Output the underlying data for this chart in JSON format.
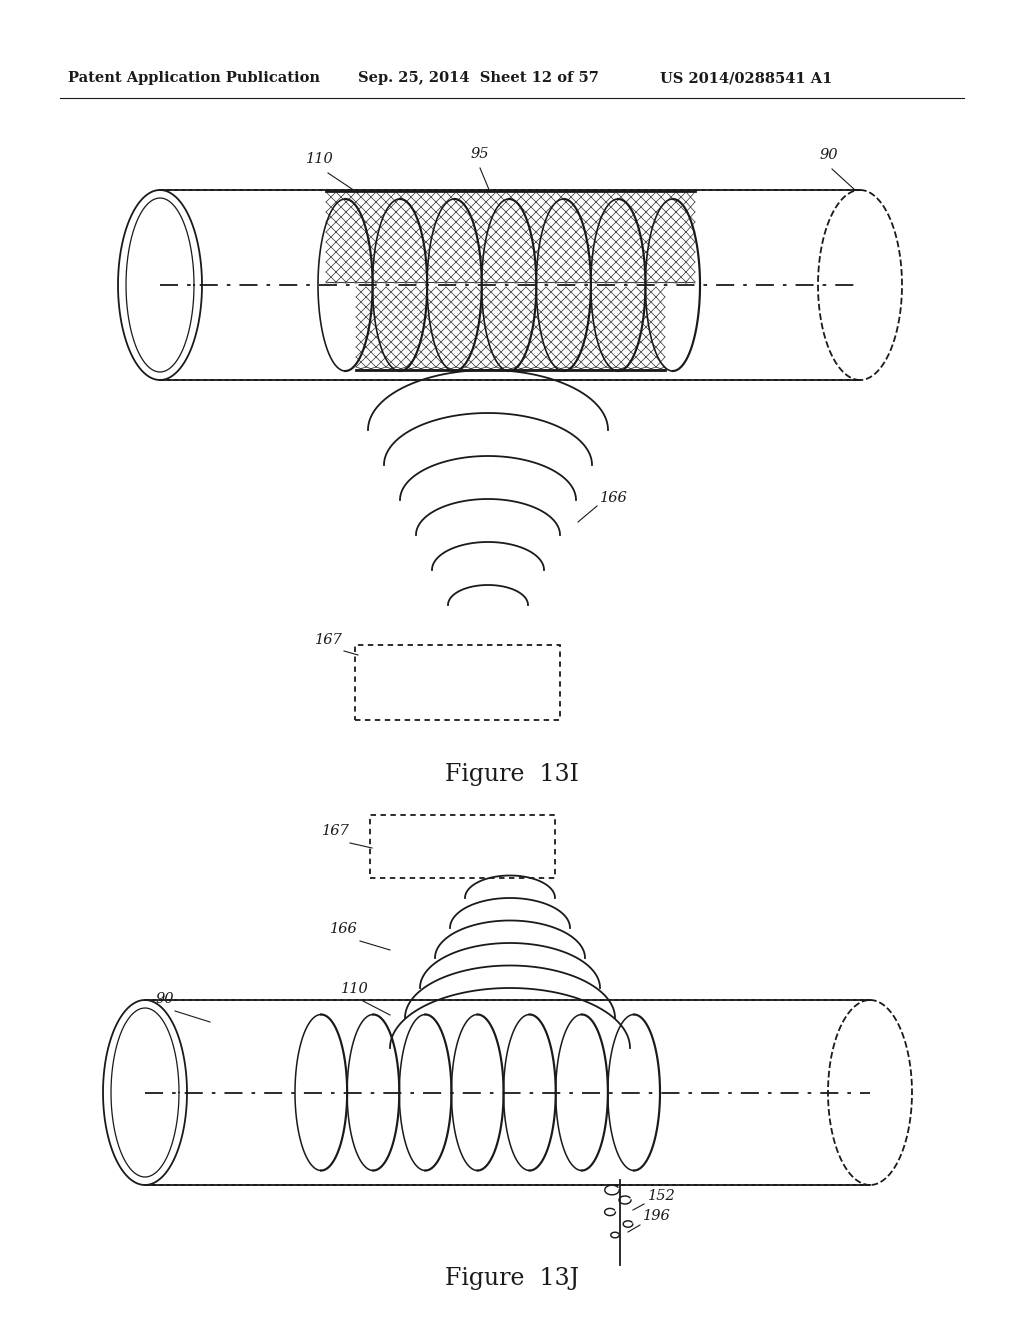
{
  "header_left": "Patent Application Publication",
  "header_mid": "Sep. 25, 2014  Sheet 12 of 57",
  "header_right": "US 2014/0288541 A1",
  "fig13i_label": "Figure  13I",
  "fig13j_label": "Figure  13J",
  "label_110_top": "110",
  "label_95": "95",
  "label_90_top": "90",
  "label_166_top": "166",
  "label_167_top": "167",
  "label_167_bot": "167",
  "label_166_bot": "166",
  "label_110_bot": "110",
  "label_90_bot": "90",
  "label_152": "152",
  "label_196": "196",
  "bg_color": "#ffffff",
  "line_color": "#1a1a1a"
}
